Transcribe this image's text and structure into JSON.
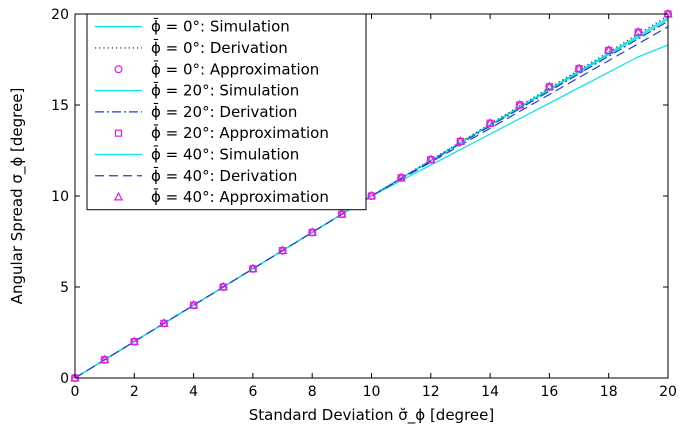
{
  "chart_data": {
    "type": "line",
    "xlabel": "Standard Deviation σ̆_ϕ [degree]",
    "ylabel": "Angular Spread σ_ϕ [degree]",
    "xlim": [
      0,
      20
    ],
    "ylim": [
      0,
      20
    ],
    "xticks": [
      0,
      2,
      4,
      6,
      8,
      10,
      12,
      14,
      16,
      18,
      20
    ],
    "yticks": [
      0,
      5,
      10,
      15,
      20
    ],
    "grid": false,
    "legend_position": "top-left",
    "x": [
      0,
      1,
      2,
      3,
      4,
      5,
      6,
      7,
      8,
      9,
      10,
      11,
      12,
      13,
      14,
      15,
      16,
      17,
      18,
      19,
      20
    ],
    "series": [
      {
        "name": "ϕ̄ = 0°: Simulation",
        "style": "solid",
        "marker": "",
        "color": "#00e5e5",
        "values": [
          0,
          1,
          2,
          3,
          4,
          5,
          6,
          7,
          8,
          9,
          10,
          10.98,
          11.96,
          12.94,
          13.92,
          14.9,
          15.88,
          16.86,
          17.84,
          18.82,
          19.8
        ]
      },
      {
        "name": "ϕ̄ = 0°: Derivation",
        "style": "dotted",
        "marker": "",
        "color": "#444444",
        "values": [
          0,
          1,
          2,
          3,
          4,
          5,
          6,
          7,
          8,
          9,
          10,
          10.99,
          11.98,
          12.97,
          13.96,
          14.95,
          15.94,
          16.93,
          17.92,
          18.91,
          19.9
        ]
      },
      {
        "name": "ϕ̄ = 0°: Approximation",
        "style": "none",
        "marker": "circle",
        "color": "#e020e0",
        "values": [
          0,
          1,
          2,
          3,
          4,
          5,
          6,
          7,
          8,
          9,
          10,
          11,
          12,
          13,
          14,
          15,
          16,
          17,
          18,
          19,
          20
        ]
      },
      {
        "name": "ϕ̄ = 20°: Simulation",
        "style": "solid",
        "marker": "",
        "color": "#00e5e5",
        "values": [
          0,
          1,
          2,
          3,
          4,
          5,
          6,
          7,
          8,
          9,
          10,
          10.97,
          11.94,
          12.91,
          13.88,
          14.85,
          15.82,
          16.79,
          17.76,
          18.73,
          19.7
        ]
      },
      {
        "name": "ϕ̄ = 20°: Derivation",
        "style": "dashdot",
        "marker": "",
        "color": "#2040d0",
        "values": [
          0,
          1,
          2,
          3,
          4,
          5,
          6,
          7,
          8,
          9,
          10,
          10.96,
          11.92,
          12.88,
          13.84,
          14.8,
          15.76,
          16.72,
          17.68,
          18.64,
          19.6
        ]
      },
      {
        "name": "ϕ̄ = 20°: Approximation",
        "style": "none",
        "marker": "square",
        "color": "#e020e0",
        "values": [
          0,
          1,
          2,
          3,
          4,
          5,
          6,
          7,
          8,
          9,
          10,
          11,
          12,
          13,
          14,
          15,
          16,
          17,
          18,
          19,
          20
        ]
      },
      {
        "name": "ϕ̄ = 40°: Simulation",
        "style": "solid",
        "marker": "",
        "color": "#00e5e5",
        "values": [
          0,
          1,
          2,
          3,
          4,
          5,
          6,
          7,
          8,
          9,
          10,
          10.85,
          11.7,
          12.55,
          13.4,
          14.25,
          15.1,
          15.95,
          16.8,
          17.65,
          18.3
        ]
      },
      {
        "name": "ϕ̄ = 40°: Derivation",
        "style": "dashed",
        "marker": "",
        "color": "#2040d0",
        "values": [
          0,
          1,
          2,
          3,
          4,
          5,
          6,
          7,
          8,
          9,
          10,
          10.93,
          11.86,
          12.79,
          13.72,
          14.65,
          15.58,
          16.51,
          17.44,
          18.37,
          19.3
        ]
      },
      {
        "name": "ϕ̄ = 40°: Approximation",
        "style": "none",
        "marker": "triangle",
        "color": "#e020e0",
        "values": [
          0,
          1,
          2,
          3,
          4,
          5,
          6,
          7,
          8,
          9,
          10,
          11,
          12,
          13,
          14,
          15,
          16,
          17,
          18,
          19,
          20
        ]
      }
    ]
  }
}
